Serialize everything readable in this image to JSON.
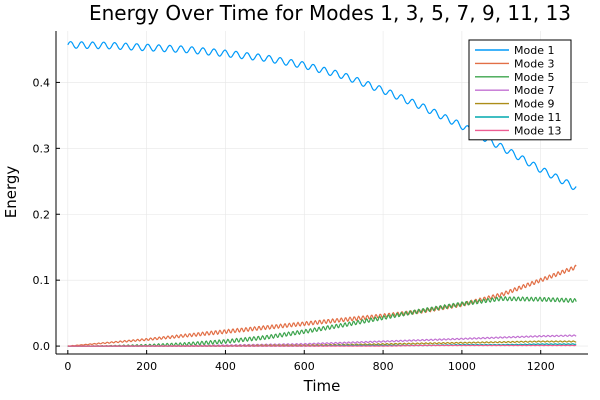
{
  "chart_data": {
    "type": "line",
    "title": "Energy Over Time for Modes 1, 3, 5, 7, 9, 11, 13",
    "xlabel": "Time",
    "ylabel": "Energy",
    "xlim": [
      -30,
      1320
    ],
    "ylim": [
      -0.012,
      0.478
    ],
    "x_ticks": [
      0,
      200,
      400,
      600,
      800,
      1000,
      1200
    ],
    "y_ticks": [
      0.0,
      0.1,
      0.2,
      0.3,
      0.4
    ],
    "y_tick_labels": [
      "0.0",
      "0.1",
      "0.2",
      "0.3",
      "0.4"
    ],
    "grid": true,
    "legend_position": "top-right",
    "x": [
      0,
      100,
      200,
      300,
      400,
      500,
      600,
      700,
      800,
      900,
      1000,
      1100,
      1200,
      1290
    ],
    "series": [
      {
        "name": "Mode 1",
        "color": "#009AF9",
        "oscillation": 0.005,
        "values": [
          0.457,
          0.456,
          0.453,
          0.45,
          0.444,
          0.437,
          0.426,
          0.41,
          0.388,
          0.363,
          0.334,
          0.302,
          0.268,
          0.24
        ]
      },
      {
        "name": "Mode 3",
        "color": "#E26F46",
        "oscillation": 0.003,
        "values": [
          0.0,
          0.005,
          0.01,
          0.016,
          0.022,
          0.028,
          0.034,
          0.04,
          0.046,
          0.053,
          0.063,
          0.078,
          0.1,
          0.12
        ]
      },
      {
        "name": "Mode 5",
        "color": "#3DA44D",
        "oscillation": 0.003,
        "values": [
          0.0,
          0.0,
          0.001,
          0.003,
          0.007,
          0.013,
          0.022,
          0.032,
          0.043,
          0.054,
          0.064,
          0.072,
          0.071,
          0.069
        ]
      },
      {
        "name": "Mode 7",
        "color": "#C271D2",
        "oscillation": 0.001,
        "values": [
          0.0,
          0.0,
          0.0,
          0.0,
          0.001,
          0.002,
          0.003,
          0.005,
          0.007,
          0.009,
          0.011,
          0.013,
          0.015,
          0.016
        ]
      },
      {
        "name": "Mode 9",
        "color": "#AC8D18",
        "oscillation": 0.0008,
        "values": [
          0.0,
          0.0,
          0.0,
          0.0,
          0.0,
          0.001,
          0.001,
          0.002,
          0.003,
          0.004,
          0.005,
          0.006,
          0.007,
          0.007
        ]
      },
      {
        "name": "Mode 11",
        "color": "#00A9AD",
        "oscillation": 0.0005,
        "values": [
          0.0,
          0.0,
          0.0,
          0.0,
          0.0,
          0.0,
          0.0,
          0.001,
          0.001,
          0.001,
          0.002,
          0.002,
          0.003,
          0.003
        ]
      },
      {
        "name": "Mode 13",
        "color": "#ED5D92",
        "oscillation": 0.0003,
        "values": [
          0.0,
          0.0,
          0.0,
          0.0,
          0.0,
          0.0,
          0.0,
          0.0,
          0.0,
          0.001,
          0.001,
          0.001,
          0.001,
          0.001
        ]
      }
    ]
  }
}
